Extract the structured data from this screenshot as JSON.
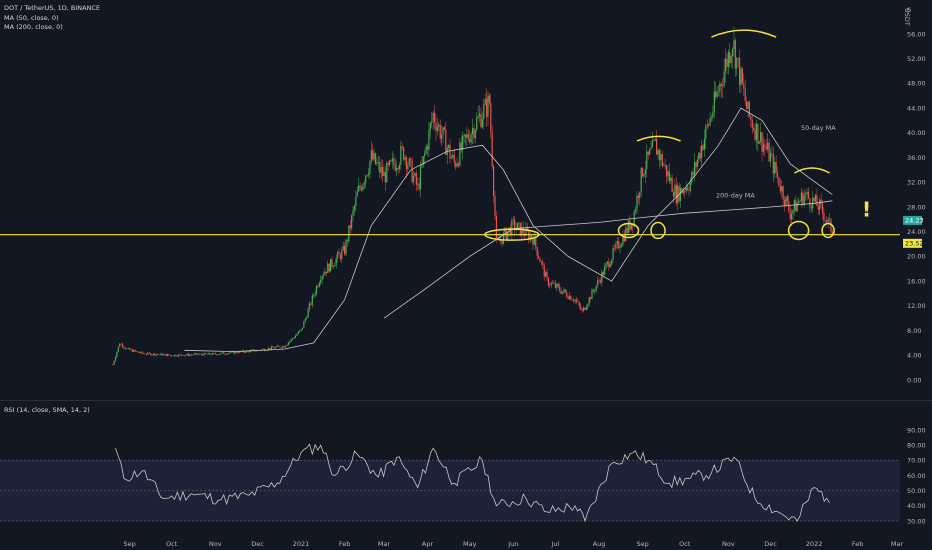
{
  "header": {
    "symbol_line": "DOT / TetherUS, 1D, BINANCE",
    "ma50_line": "MA (50, close, 0)",
    "ma200_line": "MA (200, close, 0)",
    "rsi_line": "RSI (14, close, SMA, 14, 2)",
    "currency": "USDT"
  },
  "annotations": {
    "ma50": "50-day MA",
    "ma200": "200-day MA",
    "exclaim": "!"
  },
  "price_tags": {
    "last": "24.23",
    "support": "23.52"
  },
  "colors": {
    "background": "#131722",
    "up": "#26a69a",
    "up_bright": "#4caf50",
    "down": "#ef5350",
    "ma": "#c8c8c8",
    "support_line": "#f0e442",
    "rsi_band": "#1e2238",
    "rsi_line": "#c8c8c8"
  },
  "chart_data": [
    {
      "type": "line",
      "title": "DOT / TetherUS, 1D, BINANCE",
      "series_kind": "candlestick",
      "x_ticks": [
        "Sep",
        "Oct",
        "Nov",
        "Dec",
        "2021",
        "Feb",
        "Mar",
        "Apr",
        "May",
        "Jun",
        "Jul",
        "Aug",
        "Sep",
        "Oct",
        "Nov",
        "Dec",
        "2022",
        "Feb",
        "Mar"
      ],
      "y_ticks": [
        "0.00",
        "4.00",
        "8.00",
        "12.00",
        "16.00",
        "20.00",
        "24.00",
        "28.00",
        "32.00",
        "36.00",
        "40.00",
        "44.00",
        "48.00",
        "52.00",
        "56.00"
      ],
      "y_axis_top_label": "6",
      "ylim": [
        -1,
        60
      ],
      "support_level": 23.52,
      "last_price": 24.23,
      "price_path": [
        [
          "2020-08-20",
          2.5
        ],
        [
          "2020-08-25",
          6.0
        ],
        [
          "2020-08-30",
          5.0
        ],
        [
          "2020-09-10",
          4.3
        ],
        [
          "2020-10-01",
          4.0
        ],
        [
          "2020-11-01",
          4.2
        ],
        [
          "2020-12-01",
          4.8
        ],
        [
          "2020-12-20",
          5.5
        ],
        [
          "2021-01-01",
          8.0
        ],
        [
          "2021-01-15",
          17.0
        ],
        [
          "2021-02-01",
          21.0
        ],
        [
          "2021-02-10",
          30.0
        ],
        [
          "2021-02-20",
          36.0
        ],
        [
          "2021-03-01",
          33.0
        ],
        [
          "2021-03-15",
          37.0
        ],
        [
          "2021-03-25",
          31.0
        ],
        [
          "2021-04-05",
          43.0
        ],
        [
          "2021-04-20",
          35.0
        ],
        [
          "2021-05-01",
          40.0
        ],
        [
          "2021-05-15",
          45.0
        ],
        [
          "2021-05-20",
          22.0
        ],
        [
          "2021-06-01",
          25.0
        ],
        [
          "2021-06-15",
          23.0
        ],
        [
          "2021-06-25",
          16.0
        ],
        [
          "2021-07-15",
          13.0
        ],
        [
          "2021-07-20",
          11.0
        ],
        [
          "2021-08-10",
          20.0
        ],
        [
          "2021-08-25",
          26.0
        ],
        [
          "2021-09-01",
          34.0
        ],
        [
          "2021-09-10",
          38.0
        ],
        [
          "2021-09-25",
          30.0
        ],
        [
          "2021-10-05",
          32.0
        ],
        [
          "2021-10-20",
          43.0
        ],
        [
          "2021-11-04",
          55.0
        ],
        [
          "2021-11-15",
          43.0
        ],
        [
          "2021-12-01",
          36.0
        ],
        [
          "2021-12-15",
          27.0
        ],
        [
          "2021-12-25",
          30.0
        ],
        [
          "2022-01-05",
          28.0
        ],
        [
          "2022-01-14",
          24.2
        ]
      ],
      "ma50_path": [
        [
          "2020-10-10",
          4.8
        ],
        [
          "2020-11-15",
          4.6
        ],
        [
          "2020-12-20",
          5.0
        ],
        [
          "2021-01-10",
          6.0
        ],
        [
          "2021-02-01",
          13.0
        ],
        [
          "2021-02-20",
          25.0
        ],
        [
          "2021-03-20",
          34.0
        ],
        [
          "2021-04-15",
          37.0
        ],
        [
          "2021-05-10",
          38.0
        ],
        [
          "2021-05-25",
          34.0
        ],
        [
          "2021-06-15",
          25.0
        ],
        [
          "2021-07-10",
          20.0
        ],
        [
          "2021-08-10",
          16.0
        ],
        [
          "2021-09-05",
          25.0
        ],
        [
          "2021-10-01",
          31.0
        ],
        [
          "2021-10-25",
          38.0
        ],
        [
          "2021-11-10",
          44.0
        ],
        [
          "2021-11-25",
          42.0
        ],
        [
          "2021-12-15",
          35.0
        ],
        [
          "2022-01-05",
          31.5
        ],
        [
          "2022-01-14",
          30.0
        ]
      ],
      "ma200_path": [
        [
          "2021-03-01",
          10.0
        ],
        [
          "2021-04-01",
          15.0
        ],
        [
          "2021-05-01",
          20.0
        ],
        [
          "2021-06-01",
          24.5
        ],
        [
          "2021-07-01",
          25.0
        ],
        [
          "2021-08-01",
          25.5
        ],
        [
          "2021-09-01",
          26.3
        ],
        [
          "2021-10-01",
          27.0
        ],
        [
          "2021-11-01",
          27.5
        ],
        [
          "2021-12-01",
          28.0
        ],
        [
          "2022-01-01",
          28.6
        ],
        [
          "2022-01-14",
          29.0
        ]
      ]
    },
    {
      "type": "line",
      "title": "RSI (14, close, SMA, 14, 2)",
      "y_ticks": [
        "30.00",
        "40.00",
        "50.00",
        "60.00",
        "70.00",
        "80.00",
        "90.00"
      ],
      "ylim": [
        27,
        91
      ],
      "band": [
        30,
        70
      ],
      "midline": 50,
      "rsi_path": [
        [
          "2020-08-22",
          78
        ],
        [
          "2020-08-28",
          58
        ],
        [
          "2020-09-10",
          63
        ],
        [
          "2020-09-25",
          45
        ],
        [
          "2020-10-15",
          48
        ],
        [
          "2020-11-05",
          44
        ],
        [
          "2020-11-25",
          47
        ],
        [
          "2020-12-15",
          55
        ],
        [
          "2021-01-01",
          75
        ],
        [
          "2021-01-15",
          80
        ],
        [
          "2021-01-25",
          60
        ],
        [
          "2021-02-10",
          74
        ],
        [
          "2021-02-25",
          59
        ],
        [
          "2021-03-10",
          72
        ],
        [
          "2021-03-25",
          52
        ],
        [
          "2021-04-05",
          78
        ],
        [
          "2021-04-20",
          55
        ],
        [
          "2021-05-10",
          70
        ],
        [
          "2021-05-20",
          40
        ],
        [
          "2021-06-10",
          45
        ],
        [
          "2021-06-25",
          36
        ],
        [
          "2021-07-15",
          40
        ],
        [
          "2021-07-22",
          30
        ],
        [
          "2021-08-10",
          68
        ],
        [
          "2021-08-25",
          75
        ],
        [
          "2021-09-05",
          70
        ],
        [
          "2021-09-20",
          55
        ],
        [
          "2021-10-05",
          58
        ],
        [
          "2021-10-20",
          62
        ],
        [
          "2021-11-05",
          72
        ],
        [
          "2021-11-20",
          45
        ],
        [
          "2021-12-10",
          34
        ],
        [
          "2021-12-20",
          30
        ],
        [
          "2022-01-01",
          52
        ],
        [
          "2022-01-10",
          45
        ],
        [
          "2022-01-14",
          43
        ]
      ]
    }
  ]
}
